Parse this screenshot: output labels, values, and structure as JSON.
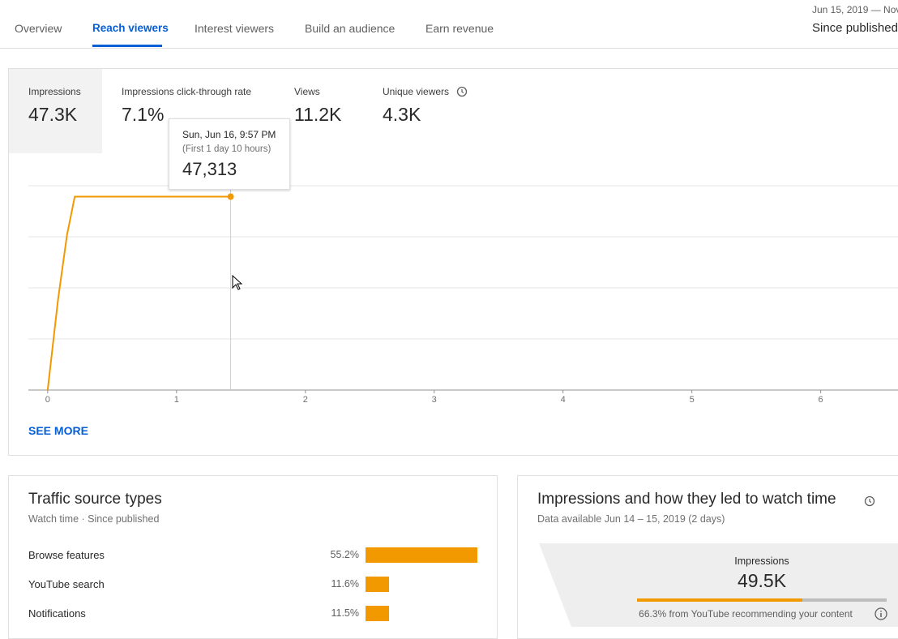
{
  "tabs": [
    "Overview",
    "Reach viewers",
    "Interest viewers",
    "Build an audience",
    "Earn revenue"
  ],
  "date_range": {
    "range": "Jun 15, 2019 — Nov",
    "period": "Since published"
  },
  "metrics": [
    {
      "label": "Impressions",
      "value": "47.3K"
    },
    {
      "label": "Impressions click-through rate",
      "value": "7.1%"
    },
    {
      "label": "Views",
      "value": "11.2K"
    },
    {
      "label": "Unique viewers",
      "value": "4.3K"
    }
  ],
  "chart_data": {
    "type": "line",
    "x": [
      0,
      0.08,
      0.15,
      0.21,
      1.42
    ],
    "series": [
      {
        "name": "Impressions",
        "color": "#f29900",
        "values": [
          0,
          22067,
          37970,
          47313,
          47313
        ]
      }
    ],
    "xlim": [
      -0.15,
      6.6
    ],
    "xticks": [
      0,
      1,
      2,
      3,
      4,
      5,
      6
    ],
    "ylim": [
      0,
      50000
    ],
    "grid": true,
    "tooltip": {
      "date": "Sun, Jun 16, 9:57 PM",
      "note": "(First 1 day 10 hours)",
      "label": "47,313"
    }
  },
  "see_more": "SEE MORE",
  "traffic": {
    "title": "Traffic source types",
    "subtitle": "Watch time · Since published",
    "color": "#f29900",
    "rows": [
      {
        "name": "Browse features",
        "value": 55.2,
        "label": "55.2%"
      },
      {
        "name": "YouTube search",
        "value": 11.6,
        "label": "11.6%"
      },
      {
        "name": "Notifications",
        "value": 11.5,
        "label": "11.5%"
      }
    ]
  },
  "funnel": {
    "title": "Impressions and how they led to watch time",
    "subtitle": "Data available Jun 14 – 15, 2019 (2 days)",
    "label": "Impressions",
    "value": "49.5K",
    "share": 66.3,
    "note": "66.3% from YouTube recommending your content"
  }
}
